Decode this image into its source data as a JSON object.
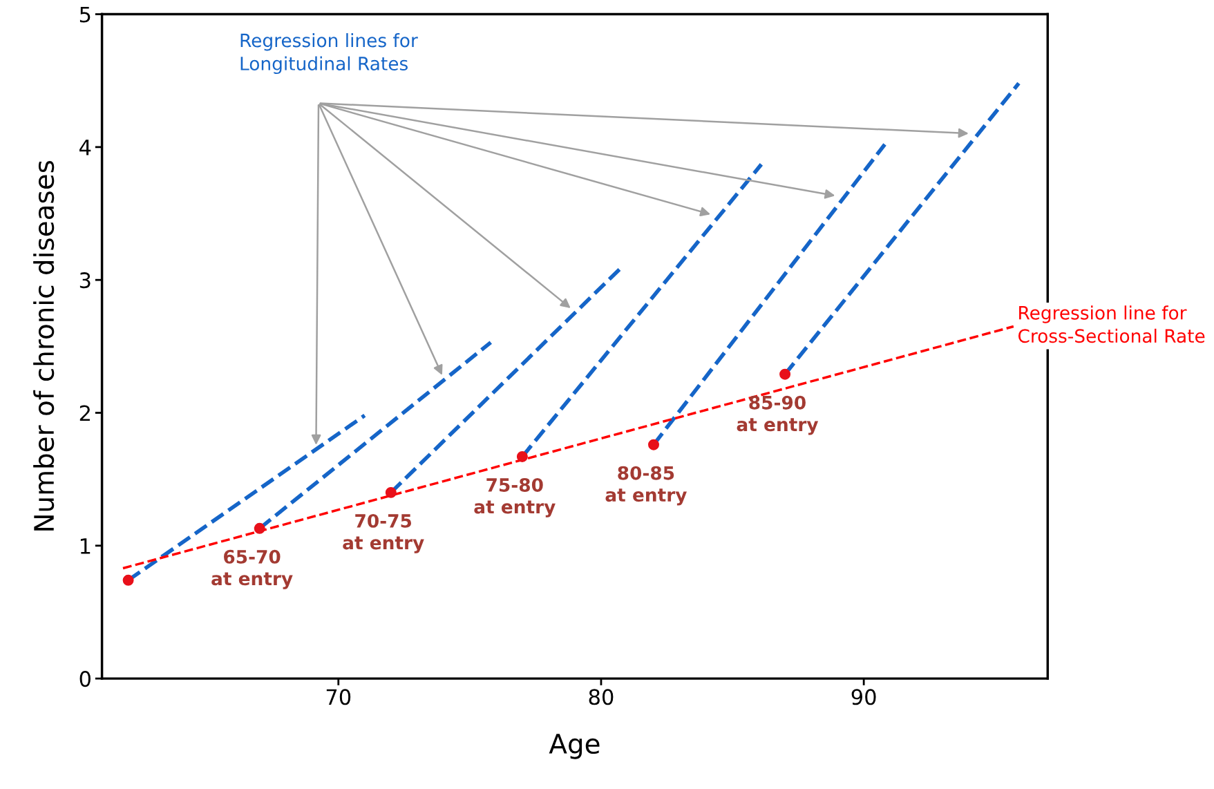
{
  "chart_data": {
    "type": "line",
    "xlabel": "Age",
    "ylabel": "Number of chronic diseases",
    "xlim": [
      61,
      97
    ],
    "ylim": [
      0,
      5
    ],
    "xticks": [
      70,
      80,
      90
    ],
    "yticks": [
      0,
      1,
      2,
      3,
      4,
      5
    ],
    "grid": false,
    "legend": false,
    "line_style": "dashed",
    "marker": "none",
    "series": [
      {
        "color": "#1565c8",
        "x": [
          62.0,
          71.0
        ],
        "values": [
          0.74,
          1.98
        ]
      },
      {
        "color": "#1565c8",
        "x": [
          67.0,
          75.8
        ],
        "values": [
          1.13,
          2.53
        ]
      },
      {
        "color": "#1565c8",
        "x": [
          72.0,
          80.7
        ],
        "values": [
          1.4,
          3.08
        ]
      },
      {
        "color": "#1565c8",
        "x": [
          77.0,
          86.1
        ],
        "values": [
          1.67,
          3.87
        ]
      },
      {
        "color": "#1565c8",
        "x": [
          82.0,
          90.8
        ],
        "values": [
          1.76,
          4.02
        ]
      },
      {
        "color": "#1565c8",
        "x": [
          87.0,
          95.9
        ],
        "values": [
          2.29,
          4.48
        ]
      },
      {
        "color": "#ff0000",
        "x": [
          61.8,
          95.7
        ],
        "values": [
          0.83,
          2.65
        ]
      },
      {
        "type": "scatter",
        "marker": "circle",
        "color": "#e8101a",
        "x": [
          62.0,
          67.0,
          72.0,
          77.0,
          82.0,
          87.0
        ],
        "values": [
          0.74,
          1.13,
          1.4,
          1.67,
          1.76,
          2.29
        ]
      }
    ],
    "annotations": [
      "Regression lines for\nLongitudinal Rates",
      "Regression line for\nCross-Sectional Rate",
      {
        "text": "65-70\nat entry",
        "x": 67.0,
        "y": 1.13
      },
      {
        "text": "70-75\nat entry",
        "x": 72.0,
        "y": 1.4
      },
      {
        "text": "75-80\nat entry",
        "x": 77.0,
        "y": 1.67
      },
      {
        "text": "80-85\nat entry",
        "x": 82.0,
        "y": 1.76
      },
      {
        "text": "85-90\nat entry",
        "x": 87.0,
        "y": 2.29
      }
    ]
  }
}
